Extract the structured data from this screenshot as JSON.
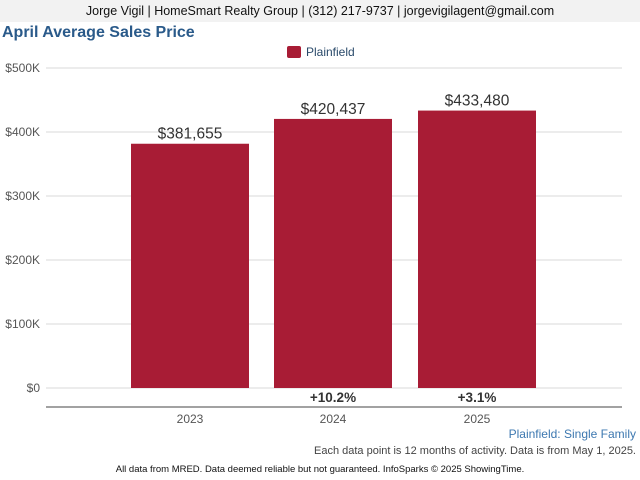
{
  "header": {
    "contact": "Jorge Vigil | HomeSmart Realty Group | (312) 217-9737 | jorgevigilagent@gmail.com"
  },
  "colors": {
    "bar": "#a81c35",
    "title": "#2a5a8a",
    "grid": "#d9d9d9",
    "axis_text": "#555555"
  },
  "chart_data": {
    "type": "bar",
    "title": "April Average Sales Price",
    "categories": [
      "2023",
      "2024",
      "2025"
    ],
    "series": [
      {
        "name": "Plainfield",
        "values": [
          381655,
          420437,
          433480
        ]
      }
    ],
    "data_labels": [
      "$381,655",
      "$420,437",
      "$433,480"
    ],
    "change_labels": [
      "",
      "+10.2%",
      "+3.1%"
    ],
    "ylim": [
      0,
      500000
    ],
    "yticks": [
      0,
      100000,
      200000,
      300000,
      400000,
      500000
    ],
    "ytick_labels": [
      "$0",
      "$100K",
      "$200K",
      "$300K",
      "$400K",
      "$500K"
    ],
    "grid": true,
    "legend": "top-center"
  },
  "footer": {
    "series_label": "Plainfield: Single Family",
    "note": "Each data point is 12 months of activity. Data is from May 1, 2025.",
    "disclaimer": "All data from MRED. Data deemed reliable but not guaranteed. InfoSparks © 2025 ShowingTime."
  }
}
